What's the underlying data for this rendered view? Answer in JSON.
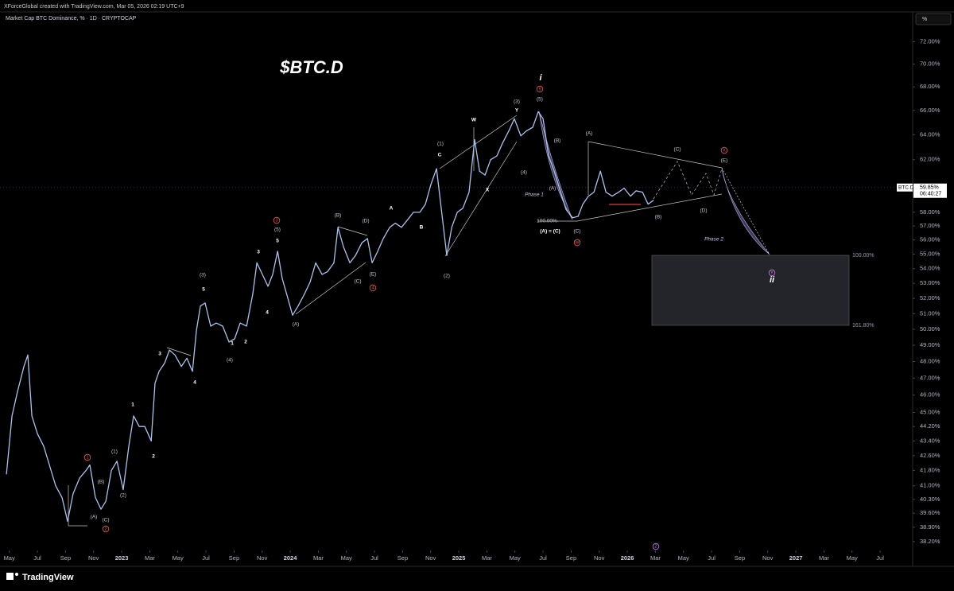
{
  "chart_data": {
    "type": "line",
    "watermark": "XForceGlobal created with TradingView.com, Mar 05, 2026 02:19 UTC+9",
    "subtitle": "Market Cap BTC Dominance, % · 1D · CRYPTOCAP",
    "title": "$BTC.D",
    "unit_button": "%",
    "brand": "TradingView",
    "log_scale": true,
    "xlim": [
      2022.278,
      2027.693
    ],
    "ylim": [
      37.85,
      74.4
    ],
    "xticks": [
      {
        "value": 2022.333,
        "label": "May"
      },
      {
        "value": 2022.5,
        "label": "Jul"
      },
      {
        "value": 2022.667,
        "label": "Sep"
      },
      {
        "value": 2022.833,
        "label": "Nov"
      },
      2023,
      {
        "value": 2023.167,
        "label": "Mar"
      },
      {
        "value": 2023.333,
        "label": "May"
      },
      {
        "value": 2023.5,
        "label": "Jul"
      },
      {
        "value": 2023.667,
        "label": "Sep"
      },
      {
        "value": 2023.833,
        "label": "Nov"
      },
      2024,
      {
        "value": 2024.167,
        "label": "Mar"
      },
      {
        "value": 2024.333,
        "label": "May"
      },
      {
        "value": 2024.5,
        "label": "Jul"
      },
      {
        "value": 2024.667,
        "label": "Sep"
      },
      {
        "value": 2024.833,
        "label": "Nov"
      },
      2025,
      {
        "value": 2025.167,
        "label": "Mar"
      },
      {
        "value": 2025.333,
        "label": "May"
      },
      {
        "value": 2025.5,
        "label": "Jul"
      },
      {
        "value": 2025.667,
        "label": "Sep"
      },
      {
        "value": 2025.833,
        "label": "Nov"
      },
      2026,
      {
        "value": 2026.167,
        "label": "Mar"
      },
      {
        "value": 2026.333,
        "label": "May"
      },
      {
        "value": 2026.5,
        "label": "Jul"
      },
      {
        "value": 2026.667,
        "label": "Sep"
      },
      {
        "value": 2026.833,
        "label": "Nov"
      },
      2027,
      {
        "value": 2027.167,
        "label": "Mar"
      },
      {
        "value": 2027.333,
        "label": "May"
      },
      {
        "value": 2027.5,
        "label": "Jul"
      }
    ],
    "yticks": [
      {
        "value": 72,
        "label": "72.00%"
      },
      {
        "value": 70,
        "label": "70.00%"
      },
      {
        "value": 68,
        "label": "68.00%"
      },
      {
        "value": 66,
        "label": "66.00%"
      },
      {
        "value": 64,
        "label": "64.00%"
      },
      {
        "value": 62,
        "label": "62.00%"
      },
      {
        "value": 58,
        "label": "58.00%"
      },
      {
        "value": 57,
        "label": "57.00%"
      },
      {
        "value": 56,
        "label": "56.00%"
      },
      {
        "value": 55,
        "label": "55.00%"
      },
      {
        "value": 54,
        "label": "54.00%"
      },
      {
        "value": 53,
        "label": "53.00%"
      },
      {
        "value": 52,
        "label": "52.00%"
      },
      {
        "value": 51,
        "label": "51.00%"
      },
      {
        "value": 50,
        "label": "50.00%"
      },
      {
        "value": 49,
        "label": "49.00%"
      },
      {
        "value": 48,
        "label": "48.00%"
      },
      {
        "value": 47,
        "label": "47.00%"
      },
      {
        "value": 46,
        "label": "46.00%"
      },
      {
        "value": 45,
        "label": "45.00%"
      },
      {
        "value": 44.2,
        "label": "44.20%"
      },
      {
        "value": 43.4,
        "label": "43.40%"
      },
      {
        "value": 42.6,
        "label": "42.60%"
      },
      {
        "value": 41.8,
        "label": "41.80%"
      },
      {
        "value": 41,
        "label": "41.00%"
      },
      {
        "value": 40.3,
        "label": "40.30%"
      },
      {
        "value": 39.6,
        "label": "39.60%"
      },
      {
        "value": 38.9,
        "label": "38.90%"
      },
      {
        "value": 38.2,
        "label": "38.20%"
      }
    ],
    "series": [
      {
        "name": "BTC.D",
        "color": "#a9c3ef",
        "x": [
          2022.316,
          2022.349,
          2022.382,
          2022.42,
          2022.443,
          2022.467,
          2022.5,
          2022.538,
          2022.571,
          2022.608,
          2022.646,
          2022.679,
          2022.712,
          2022.75,
          2022.788,
          2022.811,
          2022.844,
          2022.877,
          2022.906,
          2022.939,
          2022.972,
          2023.009,
          2023.042,
          2023.071,
          2023.104,
          2023.137,
          2023.175,
          2023.198,
          2023.222,
          2023.255,
          2023.283,
          2023.316,
          2023.354,
          2023.387,
          2023.42,
          2023.443,
          2023.467,
          2023.495,
          2023.528,
          2023.561,
          2023.599,
          2023.637,
          2023.67,
          2023.703,
          2023.741,
          2023.778,
          2023.802,
          2023.835,
          2023.868,
          2023.896,
          2023.925,
          2023.953,
          2023.986,
          2024.014,
          2024.047,
          2024.085,
          2024.118,
          2024.151,
          2024.189,
          2024.222,
          2024.259,
          2024.283,
          2024.316,
          2024.354,
          2024.387,
          2024.425,
          2024.458,
          2024.486,
          2024.519,
          2024.552,
          2024.59,
          2024.623,
          2024.66,
          2024.693,
          2024.731,
          2024.769,
          2024.802,
          2024.835,
          2024.868,
          2024.896,
          2024.929,
          2024.958,
          2024.991,
          2025.024,
          2025.061,
          2025.094,
          2025.123,
          2025.156,
          2025.189,
          2025.226,
          2025.259,
          2025.297,
          2025.33,
          2025.368,
          2025.401,
          2025.439,
          2025.472,
          2025.5,
          2025.533,
          2025.566,
          2025.604,
          2025.637,
          2025.675,
          2025.708,
          2025.736,
          2025.769,
          2025.802,
          2025.84,
          2025.873,
          2025.91,
          2025.948,
          2025.981,
          2026.019,
          2026.052,
          2026.09,
          2026.123,
          2026.156
        ],
        "values": [
          41.6,
          44.8,
          46.2,
          47.7,
          48.4,
          44.8,
          43.8,
          43.1,
          42.1,
          41.0,
          40.4,
          39.2,
          40.6,
          41.4,
          41.8,
          42.1,
          40.4,
          39.8,
          40.2,
          41.8,
          42.3,
          40.8,
          43.1,
          44.8,
          44.2,
          44.2,
          43.4,
          46.7,
          47.4,
          47.9,
          48.7,
          48.4,
          47.7,
          48.2,
          47.4,
          49.9,
          51.5,
          51.7,
          50.2,
          50.4,
          50.2,
          49.2,
          49.4,
          50.4,
          50.2,
          52.3,
          54.4,
          53.6,
          52.8,
          53.6,
          55.2,
          53.3,
          52.0,
          50.9,
          51.5,
          52.3,
          53.1,
          54.4,
          53.6,
          53.8,
          54.4,
          56.9,
          55.5,
          54.4,
          54.9,
          55.8,
          56.1,
          54.4,
          55.2,
          56.1,
          56.9,
          57.2,
          56.9,
          57.4,
          58,
          58,
          58.6,
          60.1,
          61.3,
          58.3,
          54.9,
          56.9,
          58,
          58.3,
          59.5,
          63.6,
          61.1,
          60.8,
          62,
          62.3,
          63.3,
          64.3,
          65.3,
          63.9,
          64.3,
          64.6,
          65.9,
          65.3,
          62.3,
          61.1,
          59.5,
          58.2,
          57.6,
          57.7,
          58.6,
          59.2,
          59.5,
          61.1,
          59.5,
          59.2,
          59.5,
          59.8,
          59.2,
          59.6,
          59.5,
          58.6,
          58.9
        ]
      }
    ],
    "last_value": {
      "value": 59.85,
      "label": "59.85%"
    },
    "countdown": "06:40:27",
    "fib_labels": [
      "100.00%",
      "161.80%"
    ],
    "annotations": [
      "i",
      "5",
      "(5)",
      "(3)",
      "Y",
      "W",
      "X",
      "(4)",
      "(1)",
      "C",
      "(2)",
      "A",
      "B",
      "(B)",
      "(D)",
      "(C)",
      "(E)",
      "4",
      "3",
      "(5)",
      "5",
      "3",
      "4",
      "1",
      "2",
      "(4)",
      "(A)",
      "(3)",
      "5",
      "3",
      "4",
      "1",
      "2",
      "(1)",
      "(2)",
      "1",
      "(B)",
      "(A)",
      "(C)",
      "2",
      "(B)",
      "(A)",
      "Phase 1",
      "100.00%",
      "(A) = (C)",
      "(C)",
      "W",
      "(A)",
      "(C)",
      "X",
      "(E)",
      "(D)",
      "(B)",
      "Phase 2",
      "Y",
      "ii",
      "Z"
    ]
  }
}
